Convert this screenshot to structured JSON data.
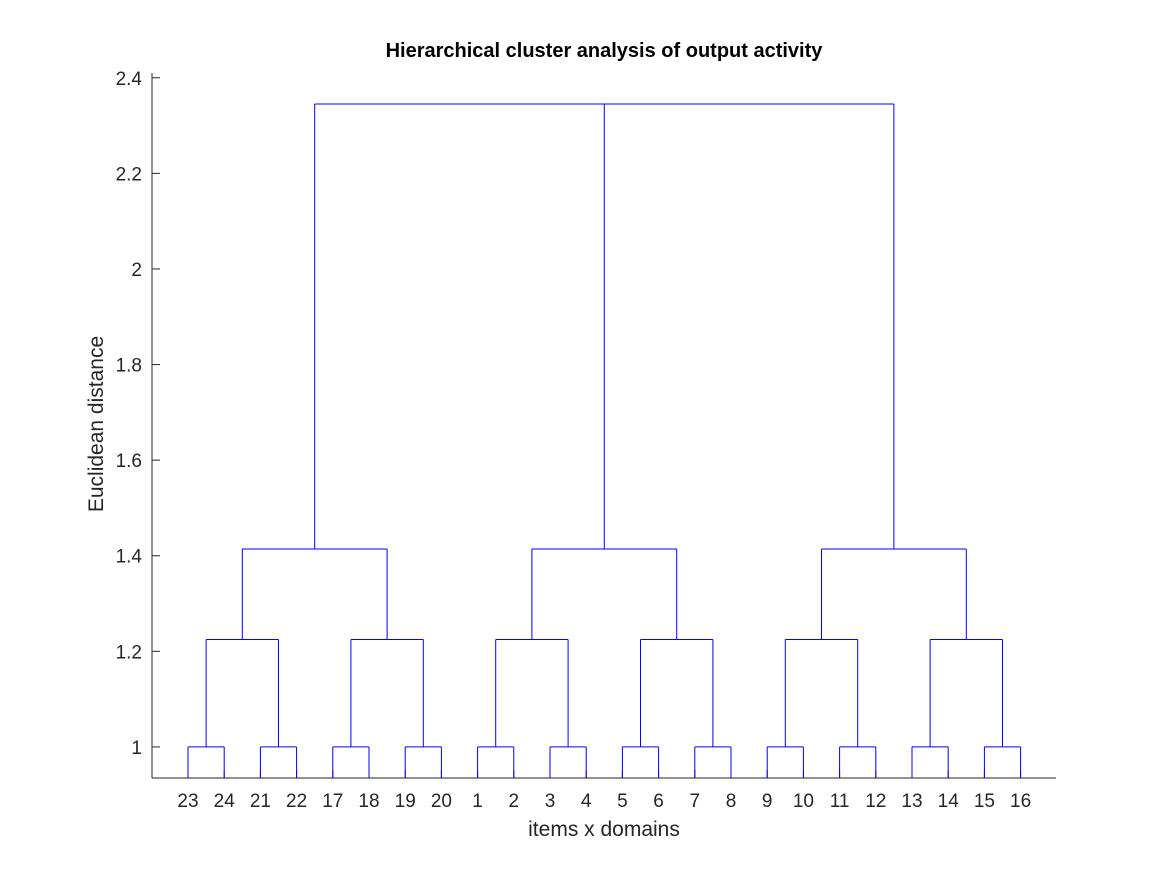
{
  "chart_data": {
    "type": "dendrogram",
    "title": "Hierarchical cluster analysis of output activity",
    "xlabel": "items x domains",
    "ylabel": "Euclidean distance",
    "ylim": [
      0.935,
      2.41
    ],
    "yticks": [
      1,
      1.2,
      1.4,
      1.6,
      1.8,
      2,
      2.2,
      2.4
    ],
    "ytick_labels": [
      "1",
      "1.2",
      "1.4",
      "1.6",
      "1.8",
      "2",
      "2.2",
      "2.4"
    ],
    "leaf_order": [
      "23",
      "24",
      "21",
      "22",
      "17",
      "18",
      "19",
      "20",
      "1",
      "2",
      "3",
      "4",
      "5",
      "6",
      "7",
      "8",
      "9",
      "10",
      "11",
      "12",
      "13",
      "14",
      "15",
      "16"
    ],
    "line_color": "#0000ff",
    "merges": [
      {
        "children": [
          "23",
          "24"
        ],
        "height": 1.0
      },
      {
        "children": [
          "21",
          "22"
        ],
        "height": 1.0
      },
      {
        "children": [
          "17",
          "18"
        ],
        "height": 1.0
      },
      {
        "children": [
          "19",
          "20"
        ],
        "height": 1.0
      },
      {
        "children": [
          "1",
          "2"
        ],
        "height": 1.0
      },
      {
        "children": [
          "3",
          "4"
        ],
        "height": 1.0
      },
      {
        "children": [
          "5",
          "6"
        ],
        "height": 1.0
      },
      {
        "children": [
          "7",
          "8"
        ],
        "height": 1.0
      },
      {
        "children": [
          "9",
          "10"
        ],
        "height": 1.0
      },
      {
        "children": [
          "11",
          "12"
        ],
        "height": 1.0
      },
      {
        "children": [
          "13",
          "14"
        ],
        "height": 1.0
      },
      {
        "children": [
          "15",
          "16"
        ],
        "height": 1.0
      },
      {
        "children": [
          "23-24",
          "21-22"
        ],
        "height": 1.2247
      },
      {
        "children": [
          "17-18",
          "19-20"
        ],
        "height": 1.2247
      },
      {
        "children": [
          "1-2",
          "3-4"
        ],
        "height": 1.2247
      },
      {
        "children": [
          "5-6",
          "7-8"
        ],
        "height": 1.2247
      },
      {
        "children": [
          "9-10",
          "11-12"
        ],
        "height": 1.2247
      },
      {
        "children": [
          "13-14",
          "15-16"
        ],
        "height": 1.2247
      },
      {
        "children": [
          "21-24",
          "17-20"
        ],
        "height": 1.4142
      },
      {
        "children": [
          "1-4",
          "5-8"
        ],
        "height": 1.4142
      },
      {
        "children": [
          "9-12",
          "13-16"
        ],
        "height": 1.4142
      },
      {
        "children": [
          "17-24",
          "1-8",
          "9-16"
        ],
        "height": 2.3452
      }
    ]
  }
}
